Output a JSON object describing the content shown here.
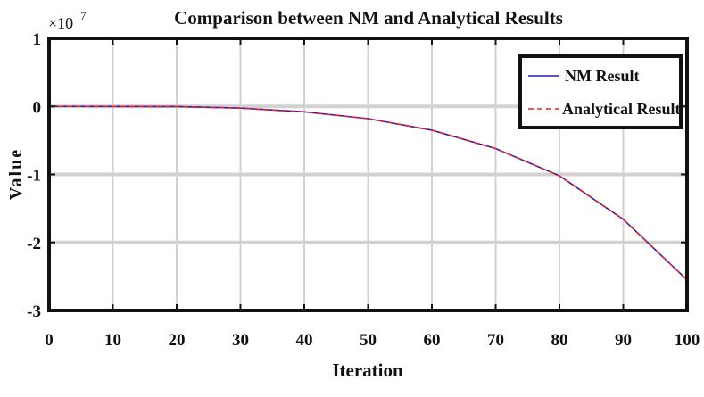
{
  "chart_data": {
    "type": "line",
    "title": "Comparison between NM and Analytical Results",
    "xlabel": "Iteration",
    "ylabel": "Value",
    "y_exponent": {
      "base": "×10",
      "power": "7"
    },
    "xlim": [
      0,
      100
    ],
    "ylim": [
      -3,
      1
    ],
    "x_ticks": [
      0,
      10,
      20,
      30,
      40,
      50,
      60,
      70,
      80,
      90,
      100
    ],
    "y_ticks": [
      1,
      0,
      -1,
      -2,
      -3
    ],
    "grid": true,
    "legend_position": "top-right",
    "x": [
      0,
      10,
      20,
      30,
      40,
      50,
      60,
      70,
      80,
      90,
      100
    ],
    "series": [
      {
        "name": "NM Result",
        "color": "#1f1fb4",
        "style": "solid",
        "values": [
          0,
          -0.0003,
          -0.003,
          -0.025,
          -0.08,
          -0.18,
          -0.35,
          -0.62,
          -1.02,
          -1.66,
          -2.55
        ]
      },
      {
        "name": "Analytical Result",
        "color": "#e8202a",
        "style": "dashed",
        "values": [
          0,
          -0.0003,
          -0.003,
          -0.025,
          -0.08,
          -0.18,
          -0.35,
          -0.62,
          -1.02,
          -1.66,
          -2.55
        ]
      }
    ]
  }
}
